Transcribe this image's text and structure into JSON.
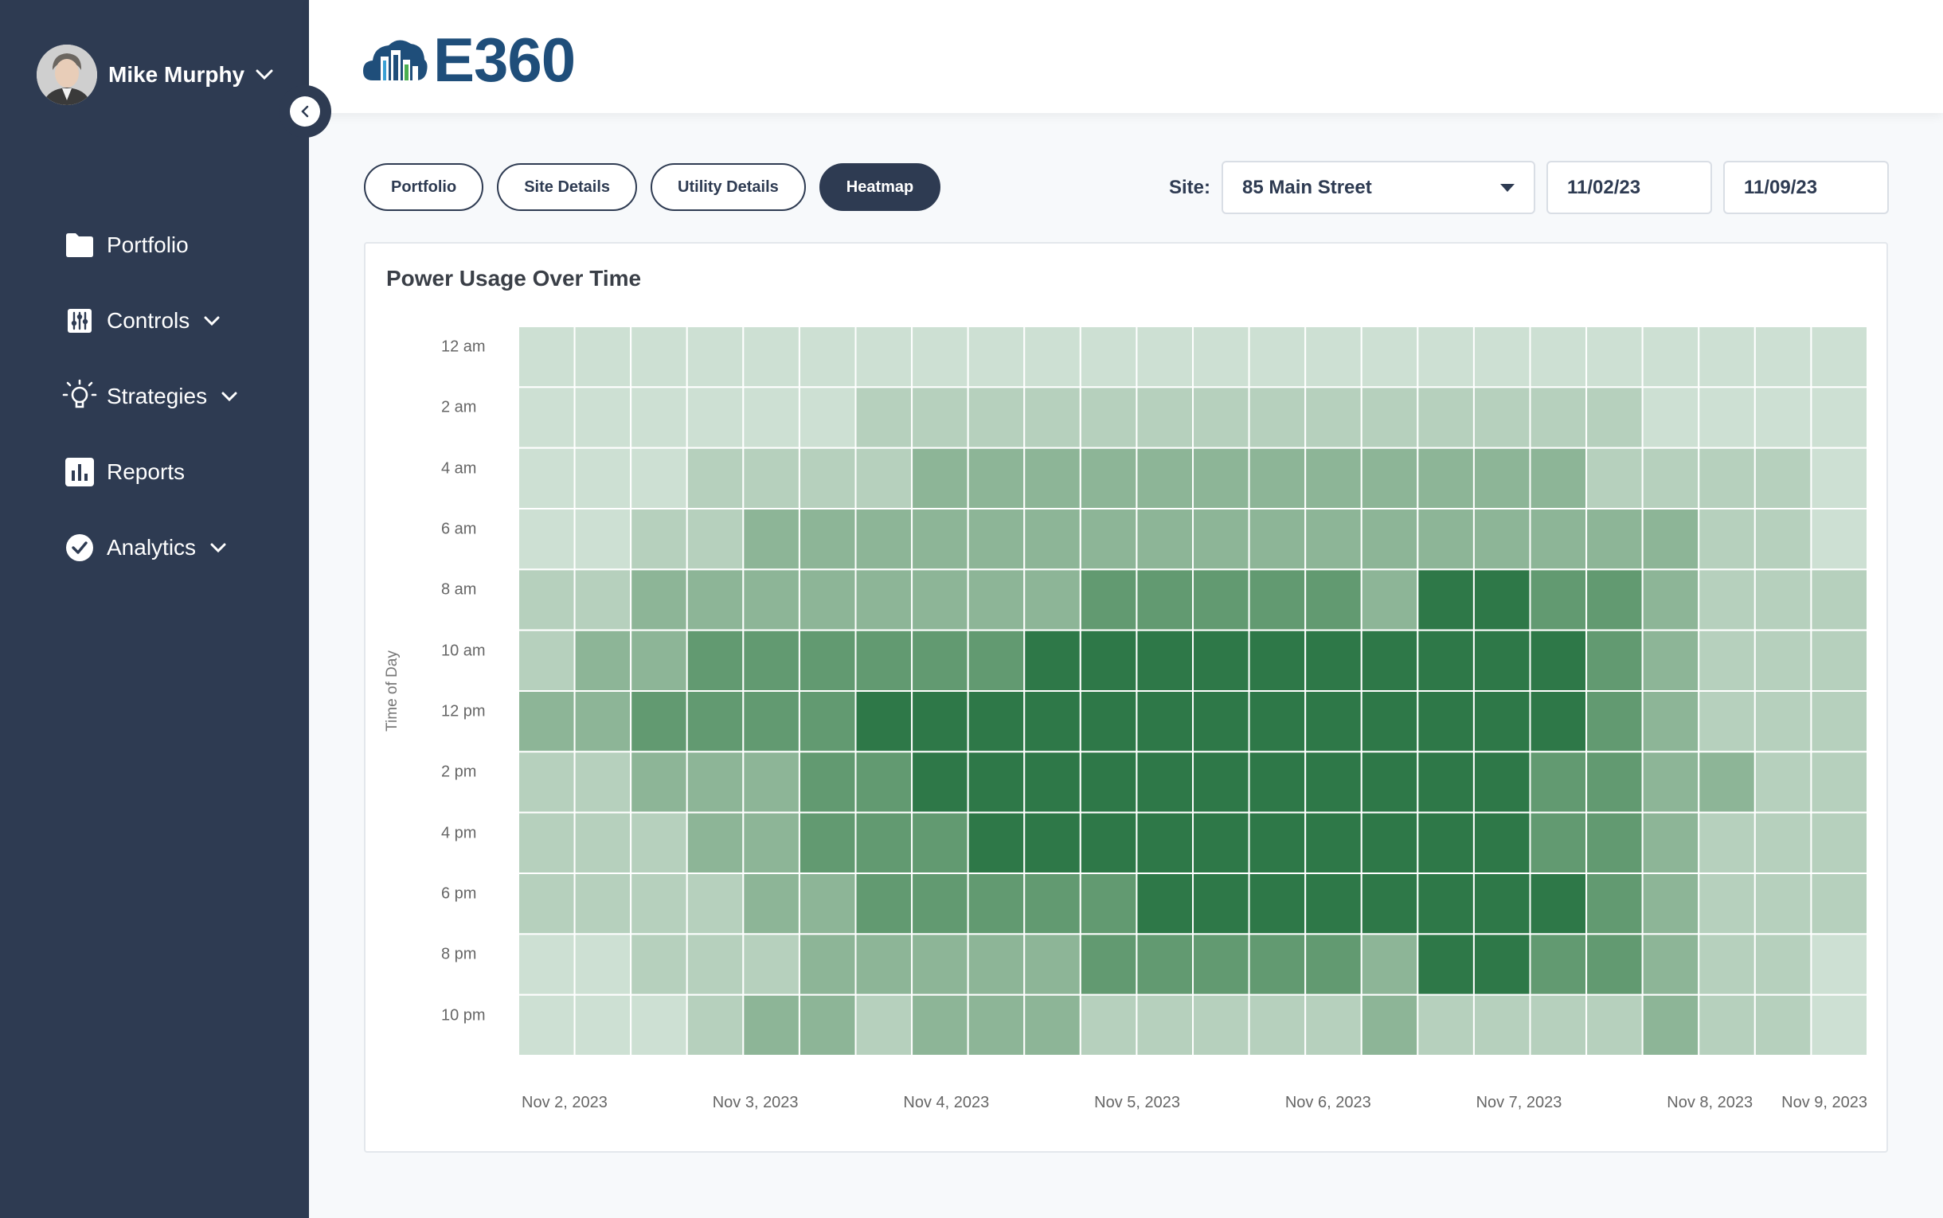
{
  "user": {
    "name": "Mike Murphy"
  },
  "sidebar": {
    "items": [
      {
        "label": "Portfolio",
        "icon": "folder-icon",
        "has_chevron": false
      },
      {
        "label": "Controls",
        "icon": "sliders-icon",
        "has_chevron": true
      },
      {
        "label": "Strategies",
        "icon": "lightbulb-icon",
        "has_chevron": true
      },
      {
        "label": "Reports",
        "icon": "bar-chart-icon",
        "has_chevron": false
      },
      {
        "label": "Analytics",
        "icon": "check-circle-icon",
        "has_chevron": true
      }
    ]
  },
  "header": {
    "logo_text": "E360"
  },
  "tabs": [
    {
      "label": "Portfolio",
      "active": false
    },
    {
      "label": "Site Details",
      "active": false
    },
    {
      "label": "Utility Details",
      "active": false
    },
    {
      "label": "Heatmap",
      "active": true
    }
  ],
  "filters": {
    "site_label": "Site:",
    "site_value": "85 Main Street",
    "start_date": "11/02/23",
    "end_date": "11/09/23"
  },
  "colors": {
    "sidebar": "#2e3b52",
    "scale": [
      "#cde0d3",
      "#b6d0bd",
      "#8db597",
      "#629a71",
      "#2e7848"
    ]
  },
  "chart_data": {
    "type": "heatmap",
    "title": "Power Usage Over Time",
    "ylabel": "Time of Day",
    "y_tick_labels": [
      "12 am",
      "2 am",
      "4 am",
      "6 am",
      "8 am",
      "10 am",
      "12 pm",
      "2 pm",
      "4 pm",
      "6 pm",
      "8 pm",
      "10 pm"
    ],
    "x_tick_labels": [
      "Nov 2, 2023",
      "Nov 3, 2023",
      "Nov 4, 2023",
      "Nov 5, 2023",
      "Nov 6, 2023",
      "Nov 7, 2023",
      "Nov 8, 2023",
      "Nov 9, 2023"
    ],
    "intensity_levels": [
      [
        0,
        0,
        0,
        0,
        0,
        0,
        0,
        0,
        0,
        0,
        0,
        0,
        0,
        0,
        0,
        0,
        0,
        0,
        0,
        0,
        0,
        0,
        0,
        0
      ],
      [
        0,
        0,
        0,
        0,
        0,
        0,
        1,
        1,
        1,
        1,
        1,
        1,
        1,
        1,
        1,
        1,
        1,
        1,
        1,
        1,
        0,
        0,
        0,
        0
      ],
      [
        0,
        0,
        0,
        1,
        1,
        1,
        1,
        2,
        2,
        2,
        2,
        2,
        2,
        2,
        2,
        2,
        2,
        2,
        2,
        1,
        1,
        1,
        1,
        0
      ],
      [
        0,
        0,
        1,
        1,
        2,
        2,
        2,
        2,
        2,
        2,
        2,
        2,
        2,
        2,
        2,
        2,
        2,
        2,
        2,
        2,
        2,
        1,
        1,
        0
      ],
      [
        1,
        1,
        2,
        2,
        2,
        2,
        2,
        2,
        2,
        2,
        3,
        3,
        3,
        3,
        3,
        2,
        4,
        4,
        3,
        3,
        2,
        1,
        1,
        1
      ],
      [
        1,
        2,
        2,
        3,
        3,
        3,
        3,
        3,
        3,
        4,
        4,
        4,
        4,
        4,
        4,
        4,
        4,
        4,
        4,
        3,
        2,
        1,
        1,
        1
      ],
      [
        2,
        2,
        3,
        3,
        3,
        3,
        4,
        4,
        4,
        4,
        4,
        4,
        4,
        4,
        4,
        4,
        4,
        4,
        4,
        3,
        2,
        1,
        1,
        1
      ],
      [
        1,
        1,
        2,
        2,
        2,
        3,
        3,
        4,
        4,
        4,
        4,
        4,
        4,
        4,
        4,
        4,
        4,
        4,
        3,
        3,
        2,
        2,
        1,
        1
      ],
      [
        1,
        1,
        1,
        2,
        2,
        3,
        3,
        3,
        4,
        4,
        4,
        4,
        4,
        4,
        4,
        4,
        4,
        4,
        3,
        3,
        2,
        1,
        1,
        1
      ],
      [
        1,
        1,
        1,
        1,
        2,
        2,
        3,
        3,
        3,
        3,
        3,
        4,
        4,
        4,
        4,
        4,
        4,
        4,
        4,
        3,
        2,
        1,
        1,
        1
      ],
      [
        0,
        0,
        1,
        1,
        1,
        2,
        2,
        2,
        2,
        2,
        3,
        3,
        3,
        3,
        3,
        2,
        4,
        4,
        3,
        3,
        2,
        1,
        1,
        0
      ],
      [
        0,
        0,
        0,
        1,
        2,
        2,
        1,
        2,
        2,
        2,
        1,
        1,
        1,
        1,
        1,
        2,
        1,
        1,
        1,
        1,
        2,
        1,
        1,
        0
      ]
    ]
  }
}
